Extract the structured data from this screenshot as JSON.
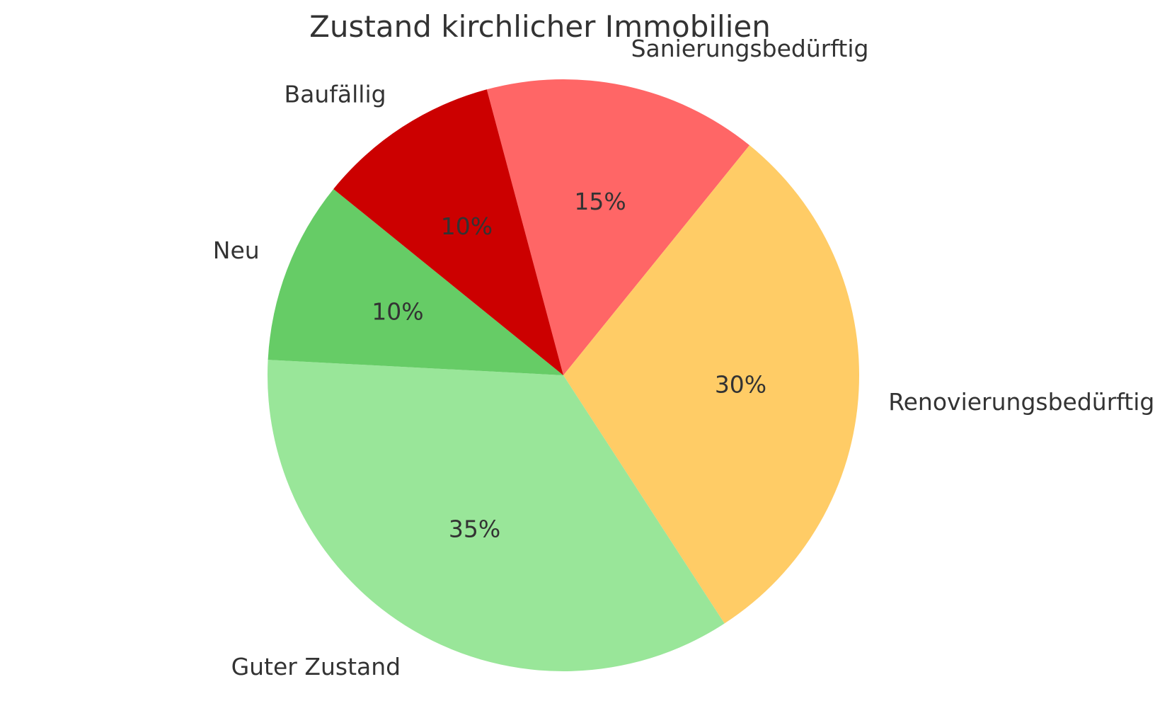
{
  "chart_data": {
    "type": "pie",
    "title": "Zustand kirchlicher Immobilien",
    "slices": [
      {
        "label": "Sanierungsbedürftig",
        "value": 15,
        "pct_label": "15%",
        "color": "#FF6666"
      },
      {
        "label": "Renovierungsbedürftig",
        "value": 30,
        "pct_label": "30%",
        "color": "#FFCC66"
      },
      {
        "label": "Guter Zustand",
        "value": 35,
        "pct_label": "35%",
        "color": "#99E699"
      },
      {
        "label": "Neu",
        "value": 10,
        "pct_label": "10%",
        "color": "#66CC66"
      },
      {
        "label": "Baufällig",
        "value": 10,
        "pct_label": "10%",
        "color": "#CC0000"
      }
    ],
    "start_angle_deg": 105,
    "direction": "clockwise",
    "legend": "none",
    "grid": "off",
    "text_color": "#333333",
    "background_color": "#FFFFFF"
  }
}
